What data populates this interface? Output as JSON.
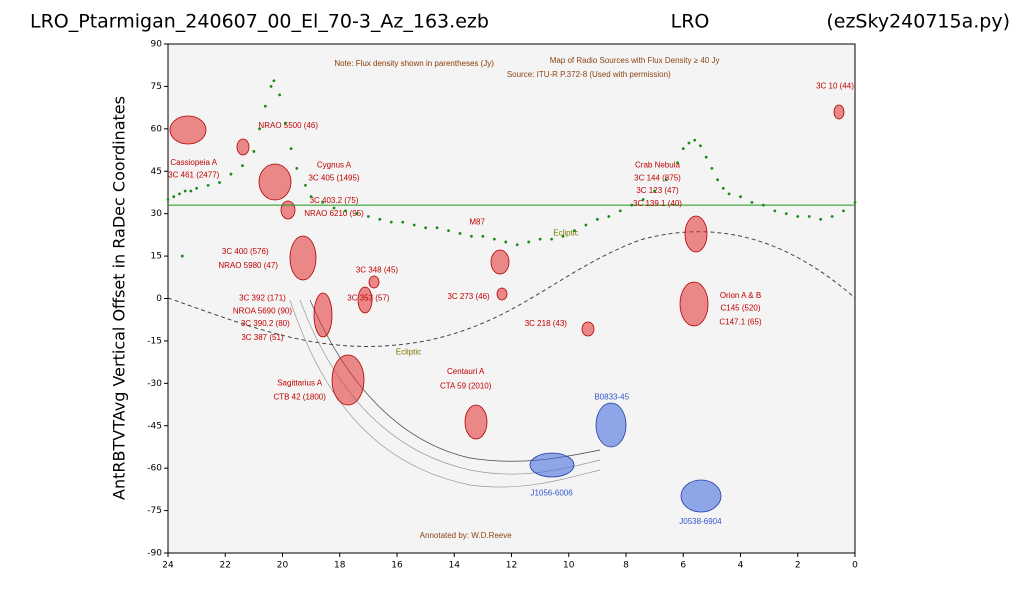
{
  "chart_data": {
    "type": "scatter",
    "title_left": "LRO_Ptarmigan_240607_00_El_70-3_Az_163.ezb",
    "title_center": "LRO",
    "title_right": "(ezSky240715a.py)",
    "y_label": "AntRBTVTAvg Vertical Offset in RaDec Coordinates",
    "xlim": [
      24,
      0
    ],
    "ylim": [
      -90,
      90
    ],
    "xticks": [
      24,
      22,
      20,
      18,
      16,
      14,
      12,
      10,
      8,
      6,
      4,
      2,
      0
    ],
    "yticks": [
      -90,
      -75,
      -60,
      -45,
      -30,
      -15,
      0,
      15,
      30,
      45,
      60,
      75,
      90
    ],
    "grid": false,
    "series": [
      {
        "color": "#1a8a1a",
        "x": [
          24,
          23.8,
          23.6,
          23.5,
          23.4,
          23.2,
          23,
          22.6,
          22.2,
          21.8,
          21.4,
          21.0,
          20.8,
          20.6,
          20.4,
          20.3,
          20.1,
          19.9,
          19.7,
          19.5,
          19.2,
          19.0,
          18.6,
          18.2,
          17.8,
          17.4,
          17.0,
          16.6,
          16.2,
          15.8,
          15.4,
          15.0,
          14.6,
          14.2,
          13.8,
          13.4,
          13.0,
          12.6,
          12.2,
          11.8,
          11.4,
          11.0,
          10.6,
          10.2,
          9.8,
          9.4,
          9.0,
          8.6,
          8.2,
          7.8,
          7.4,
          7.0,
          6.6,
          6.2,
          6.0,
          5.8,
          5.6,
          5.4,
          5.2,
          5.0,
          4.8,
          4.6,
          4.4,
          4.0,
          3.6,
          3.2,
          2.8,
          2.4,
          2.0,
          1.6,
          1.2,
          0.8,
          0.4,
          0
        ],
        "y": [
          35,
          36,
          37,
          15,
          38,
          38,
          39,
          40,
          41,
          44,
          47,
          52,
          60,
          68,
          75,
          77,
          72,
          62,
          53,
          46,
          40,
          36,
          34,
          32,
          31,
          30,
          29,
          28,
          27,
          27,
          26,
          25,
          25,
          24,
          23,
          22,
          22,
          21,
          20,
          19,
          20,
          21,
          21,
          22,
          24,
          26,
          28,
          29,
          31,
          33,
          35,
          38,
          42,
          48,
          53,
          55,
          56,
          54,
          50,
          46,
          42,
          39,
          37,
          36,
          34,
          33,
          31,
          30,
          29,
          29,
          28,
          29,
          31,
          34
        ]
      }
    ],
    "hline": {
      "value": 33,
      "color": "#1a9a1a"
    },
    "annotations": [
      {
        "text": "Note: Flux density shown in parentheses (Jy)",
        "x": 15.4,
        "y": 83,
        "color": "#8b3a00"
      },
      {
        "text": "Map of Radio Sources with Flux Density ≥ 40 Jy",
        "x": 7.7,
        "y": 84,
        "color": "#8b4513"
      },
      {
        "text": "Source: ITU-R P.372-8 (Used with permission)",
        "x": 9.3,
        "y": 79,
        "color": "#8b4513"
      },
      {
        "text": "Cassiopeia A",
        "x": 23.1,
        "y": 48,
        "color": "#c00000"
      },
      {
        "text": "3C 461 (2477)",
        "x": 23.1,
        "y": 43.5,
        "color": "#c00000"
      },
      {
        "text": "NRAO 5500 (46)",
        "x": 19.8,
        "y": 61,
        "color": "#c00000"
      },
      {
        "text": "Cygnus A",
        "x": 18.2,
        "y": 47,
        "color": "#c00000"
      },
      {
        "text": "3C 405 (1495)",
        "x": 18.2,
        "y": 42.5,
        "color": "#c00000"
      },
      {
        "text": "3C 403.2 (75)",
        "x": 18.2,
        "y": 34.5,
        "color": "#c00000"
      },
      {
        "text": "NRAO 6210 (95)",
        "x": 18.2,
        "y": 30,
        "color": "#c00000"
      },
      {
        "text": "3C 400 (576)",
        "x": 21.3,
        "y": 16.5,
        "color": "#c00000"
      },
      {
        "text": "NRAO 5980 (47)",
        "x": 21.2,
        "y": 11.5,
        "color": "#c00000"
      },
      {
        "text": "3C 392 (171)",
        "x": 20.7,
        "y": 0,
        "color": "#c00000"
      },
      {
        "text": "NROA 5690 (90)",
        "x": 20.7,
        "y": -4.5,
        "color": "#c00000"
      },
      {
        "text": "3C 390.2 (80)",
        "x": 20.6,
        "y": -9,
        "color": "#c00000"
      },
      {
        "text": "3C 387 (51)",
        "x": 20.7,
        "y": -14,
        "color": "#c00000"
      },
      {
        "text": "3C 348 (45)",
        "x": 16.7,
        "y": 10,
        "color": "#c00000"
      },
      {
        "text": "3C 353 (57)",
        "x": 17.0,
        "y": 0,
        "color": "#c00000"
      },
      {
        "text": "3C 273 (46)",
        "x": 13.5,
        "y": 0.5,
        "color": "#c00000"
      },
      {
        "text": "M87",
        "x": 13.2,
        "y": 27,
        "color": "#c00000"
      },
      {
        "text": "Ecliptic",
        "x": 10.1,
        "y": 23,
        "color": "#7a7a00"
      },
      {
        "text": "Ecliptic",
        "x": 15.6,
        "y": -19,
        "color": "#7a7a00"
      },
      {
        "text": "Sagittarius A",
        "x": 19.4,
        "y": -30,
        "color": "#c00000"
      },
      {
        "text": "CTB 42 (1800)",
        "x": 19.4,
        "y": -35,
        "color": "#c00000"
      },
      {
        "text": "Centauri A",
        "x": 13.6,
        "y": -26,
        "color": "#c00000"
      },
      {
        "text": "CTA 59 (2010)",
        "x": 13.6,
        "y": -31,
        "color": "#c00000"
      },
      {
        "text": "3C 218 (43)",
        "x": 10.8,
        "y": -9,
        "color": "#c00000"
      },
      {
        "text": "Crab Nebula",
        "x": 6.9,
        "y": 47,
        "color": "#c00000"
      },
      {
        "text": "3C 144 (875)",
        "x": 6.9,
        "y": 42.5,
        "color": "#c00000"
      },
      {
        "text": "3C 123 (47)",
        "x": 6.9,
        "y": 38,
        "color": "#c00000"
      },
      {
        "text": "3C 139.1 (40)",
        "x": 6.9,
        "y": 33.5,
        "color": "#c00000"
      },
      {
        "text": "Orion A & B",
        "x": 4.0,
        "y": 1,
        "color": "#c00000"
      },
      {
        "text": "C145 (520)",
        "x": 4.0,
        "y": -3.5,
        "color": "#c00000"
      },
      {
        "text": "C147.1 (65)",
        "x": 4.0,
        "y": -8.5,
        "color": "#c00000"
      },
      {
        "text": "3C 10 (44)",
        "x": 0.7,
        "y": 75,
        "color": "#c00000"
      },
      {
        "text": "B0833-45",
        "x": 8.5,
        "y": -35,
        "color": "#3355cc"
      },
      {
        "text": "J1056-6006",
        "x": 10.6,
        "y": -69,
        "color": "#3355cc"
      },
      {
        "text": "J0538-6904",
        "x": 5.4,
        "y": -79,
        "color": "#3355cc"
      },
      {
        "text": "Annotated by: W.D.Reeve",
        "x": 13.6,
        "y": -84,
        "color": "#8b4513"
      }
    ]
  }
}
